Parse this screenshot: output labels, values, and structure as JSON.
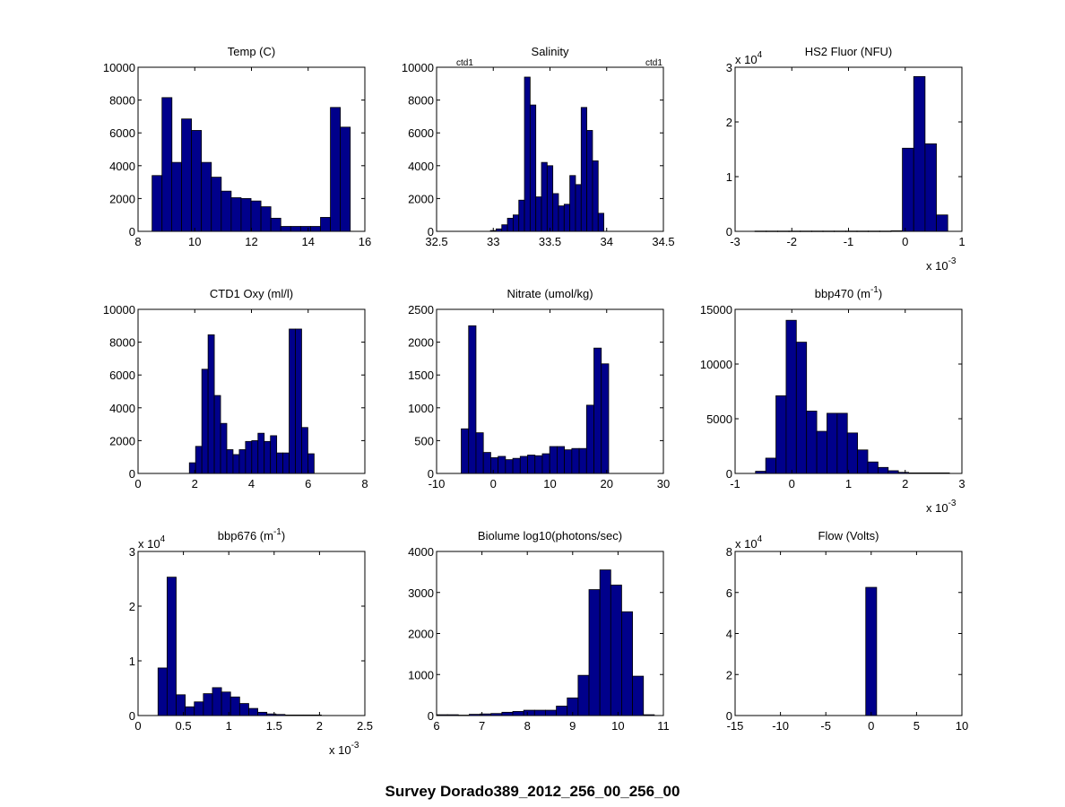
{
  "figure": {
    "suptitle": "Survey Dorado389_2012_256_00_256_00",
    "bar_color": "#00008B",
    "edge_color": "#000000"
  },
  "chart_data": [
    {
      "type": "bar",
      "title": "Temp (C)",
      "xlim": [
        8,
        16
      ],
      "ylim": [
        0,
        10000
      ],
      "xticks": [
        8,
        10,
        12,
        14,
        16
      ],
      "xticklabels": [
        "8",
        "10",
        "12",
        "14",
        "16"
      ],
      "yticks": [
        0,
        2000,
        4000,
        6000,
        8000,
        10000
      ],
      "yticklabels": [
        "0",
        "2000",
        "4000",
        "6000",
        "8000",
        "10000"
      ],
      "x": [
        8.67,
        9.02,
        9.36,
        9.71,
        10.06,
        10.41,
        10.76,
        11.11,
        11.46,
        11.81,
        12.16,
        12.51,
        12.86,
        13.21,
        13.56,
        13.91,
        14.26,
        14.61,
        14.96,
        15.31
      ],
      "values": [
        3400,
        8150,
        4200,
        6850,
        6150,
        4200,
        3300,
        2450,
        2050,
        2000,
        1850,
        1500,
        800,
        300,
        300,
        300,
        300,
        850,
        7550,
        6350
      ]
    },
    {
      "type": "bar",
      "title": "Salinity",
      "annotations": [
        "ctd1",
        "ctd1"
      ],
      "xlim": [
        32.5,
        34.5
      ],
      "ylim": [
        0,
        10000
      ],
      "xticks": [
        32.5,
        33,
        33.5,
        34,
        34.5
      ],
      "xticklabels": [
        "32.5",
        "33",
        "33.5",
        "34",
        "34.5"
      ],
      "yticks": [
        0,
        2000,
        4000,
        6000,
        8000,
        10000
      ],
      "yticklabels": [
        "0",
        "2000",
        "4000",
        "6000",
        "8000",
        "10000"
      ],
      "x": [
        33.0,
        33.05,
        33.1,
        33.15,
        33.2,
        33.25,
        33.3,
        33.35,
        33.4,
        33.45,
        33.5,
        33.55,
        33.6,
        33.65,
        33.7,
        33.75,
        33.8,
        33.85,
        33.9,
        33.95
      ],
      "values": [
        50,
        150,
        400,
        800,
        1000,
        1900,
        9400,
        7700,
        2100,
        4200,
        4000,
        2300,
        1550,
        1650,
        3400,
        2850,
        7550,
        6150,
        4300,
        1100
      ]
    },
    {
      "type": "bar",
      "title": "HS2 Fluor (NFU)",
      "y_exponent": "x 10^4",
      "x_exponent": "x 10^-3",
      "xlim": [
        -3,
        1
      ],
      "ylim": [
        0,
        3
      ],
      "xticks": [
        -3,
        -2,
        -1,
        0,
        1
      ],
      "xticklabels": [
        "-3",
        "-2",
        "-1",
        "0",
        "1"
      ],
      "yticks": [
        0,
        1,
        2,
        3
      ],
      "yticklabels": [
        "0",
        "1",
        "2",
        "3"
      ],
      "x": [
        -2.55,
        -2.35,
        -2.15,
        -1.95,
        -1.75,
        -1.55,
        -1.35,
        -1.15,
        -0.95,
        -0.75,
        -0.55,
        -0.35,
        -0.15,
        0.05,
        0.25,
        0.45,
        0.65
      ],
      "values": [
        0.005,
        0.005,
        0.005,
        0.005,
        0.005,
        0.005,
        0.005,
        0.005,
        0.005,
        0.005,
        0.005,
        0.005,
        0.01,
        1.52,
        2.83,
        1.6,
        0.3
      ]
    },
    {
      "type": "bar",
      "title": "CTD1 Oxy (ml/l)",
      "xlim": [
        0,
        8
      ],
      "ylim": [
        0,
        10000
      ],
      "xticks": [
        0,
        2,
        4,
        6,
        8
      ],
      "xticklabels": [
        "0",
        "2",
        "4",
        "6",
        "8"
      ],
      "yticks": [
        0,
        2000,
        4000,
        6000,
        8000,
        10000
      ],
      "yticklabels": [
        "0",
        "2000",
        "4000",
        "6000",
        "8000",
        "10000"
      ],
      "x": [
        1.92,
        2.14,
        2.36,
        2.58,
        2.8,
        3.02,
        3.24,
        3.46,
        3.68,
        3.9,
        4.12,
        4.34,
        4.56,
        4.78,
        5.0,
        5.22,
        5.44,
        5.66,
        5.88,
        6.1
      ],
      "values": [
        650,
        1650,
        6350,
        8450,
        4750,
        3050,
        1450,
        1150,
        1450,
        1950,
        2000,
        2450,
        1950,
        2300,
        1250,
        1250,
        8800,
        8800,
        2800,
        1200
      ]
    },
    {
      "type": "bar",
      "title": "Nitrate (umol/kg)",
      "xlim": [
        -10,
        30
      ],
      "ylim": [
        0,
        2500
      ],
      "xticks": [
        -10,
        0,
        10,
        20,
        30
      ],
      "xticklabels": [
        "-10",
        "0",
        "10",
        "20",
        "30"
      ],
      "yticks": [
        0,
        500,
        1000,
        1500,
        2000,
        2500
      ],
      "yticklabels": [
        "0",
        "500",
        "1000",
        "1500",
        "2000",
        "2500"
      ],
      "x": [
        -5.0,
        -3.7,
        -2.4,
        -1.1,
        0.2,
        1.5,
        2.8,
        4.1,
        5.4,
        6.7,
        8.0,
        9.3,
        10.6,
        11.9,
        13.2,
        14.5,
        15.8,
        17.1,
        18.4,
        19.7
      ],
      "values": [
        680,
        2250,
        620,
        320,
        240,
        260,
        210,
        230,
        260,
        280,
        270,
        300,
        410,
        410,
        360,
        380,
        380,
        1040,
        1910,
        1670
      ]
    },
    {
      "type": "bar",
      "title": "bbp470 (m⁻¹)",
      "x_exponent": "x 10^-3",
      "xlim": [
        -1,
        3
      ],
      "ylim": [
        0,
        15000
      ],
      "xticks": [
        -1,
        0,
        1,
        2,
        3
      ],
      "xticklabels": [
        "-1",
        "0",
        "1",
        "2",
        "3"
      ],
      "yticks": [
        0,
        5000,
        10000,
        15000
      ],
      "yticklabels": [
        "0",
        "5000",
        "10000",
        "15000"
      ],
      "x": [
        -0.55,
        -0.37,
        -0.19,
        -0.01,
        0.17,
        0.35,
        0.53,
        0.71,
        0.89,
        1.07,
        1.25,
        1.43,
        1.61,
        1.79,
        1.97,
        2.15,
        2.33,
        2.51,
        2.69
      ],
      "values": [
        200,
        1400,
        7100,
        14000,
        12000,
        5700,
        3850,
        5500,
        5500,
        3700,
        2150,
        1050,
        550,
        250,
        100,
        50,
        50,
        50,
        50
      ]
    },
    {
      "type": "bar",
      "title": "bbp676 (m⁻¹)",
      "y_exponent": "x 10^4",
      "x_exponent": "x 10^-3",
      "xlim": [
        0,
        2.5
      ],
      "ylim": [
        0,
        3
      ],
      "xticks": [
        0,
        0.5,
        1,
        1.5,
        2,
        2.5
      ],
      "xticklabels": [
        "0",
        "0.5",
        "1",
        "1.5",
        "2",
        "2.5"
      ],
      "yticks": [
        0,
        1,
        2,
        3
      ],
      "yticklabels": [
        "0",
        "1",
        "2",
        "3"
      ],
      "x": [
        0.27,
        0.37,
        0.47,
        0.57,
        0.67,
        0.77,
        0.87,
        0.97,
        1.07,
        1.17,
        1.27,
        1.37,
        1.47,
        1.57,
        1.67,
        1.77,
        1.87,
        1.97
      ],
      "values": [
        0.87,
        2.53,
        0.38,
        0.16,
        0.25,
        0.4,
        0.51,
        0.43,
        0.34,
        0.22,
        0.13,
        0.06,
        0.03,
        0.02,
        0.01,
        0.01,
        0.01,
        0.01
      ]
    },
    {
      "type": "bar",
      "title": "Biolume log10(photons/sec)",
      "xlim": [
        6,
        11
      ],
      "ylim": [
        0,
        4000
      ],
      "xticks": [
        6,
        7,
        8,
        9,
        10,
        11
      ],
      "xticklabels": [
        "6",
        "7",
        "8",
        "9",
        "10",
        "11"
      ],
      "yticks": [
        0,
        1000,
        2000,
        3000,
        4000
      ],
      "yticklabels": [
        "0",
        "1000",
        "2000",
        "3000",
        "4000"
      ],
      "x": [
        6.12,
        6.36,
        6.6,
        6.84,
        7.08,
        7.32,
        7.56,
        7.8,
        8.04,
        8.28,
        8.52,
        8.76,
        9.0,
        9.24,
        9.48,
        9.72,
        9.96,
        10.2,
        10.44,
        10.68
      ],
      "values": [
        20,
        20,
        10,
        30,
        40,
        50,
        80,
        100,
        130,
        130,
        130,
        230,
        430,
        980,
        3070,
        3550,
        3180,
        2530,
        960,
        20
      ]
    },
    {
      "type": "bar",
      "title": "Flow (Volts)",
      "y_exponent": "x 10^4",
      "xlim": [
        -15,
        10
      ],
      "ylim": [
        0,
        8
      ],
      "xticks": [
        -15,
        -10,
        -5,
        0,
        5,
        10
      ],
      "xticklabels": [
        "-15",
        "-10",
        "-5",
        "0",
        "5",
        "10"
      ],
      "yticks": [
        0,
        2,
        4,
        6,
        8
      ],
      "yticklabels": [
        "0",
        "2",
        "4",
        "6",
        "8"
      ],
      "x": [
        0
      ],
      "values": [
        6.25
      ],
      "bar_width": 1.2
    }
  ]
}
